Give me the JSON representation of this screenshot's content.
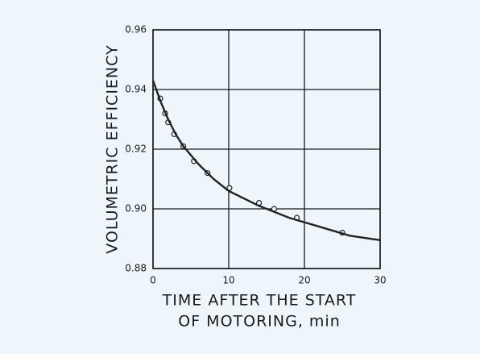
{
  "chart_data": {
    "type": "scatter",
    "ylabel": "VOLUMETRIC EFFICIENCY",
    "xlabel": [
      "TIME AFTER THE START",
      "OF MOTORING, min"
    ],
    "xlim": [
      0,
      30
    ],
    "xticks": [
      0,
      10,
      20,
      30
    ],
    "ylim": [
      0.88,
      0.96
    ],
    "yticks": [
      0.88,
      {
        "value": 0.9,
        "label": "0.90"
      },
      0.92,
      0.94,
      0.96
    ],
    "grid": true,
    "series": [
      {
        "kind": "scatter",
        "color": "#222222",
        "x": [
          0.96,
          1.6,
          2.0,
          2.8,
          4.0,
          5.4,
          7.2,
          10.1,
          14.0,
          16.0,
          19.0,
          25.0
        ],
        "values": [
          0.937,
          0.932,
          0.929,
          0.925,
          0.921,
          0.916,
          0.912,
          0.907,
          0.902,
          0.9,
          0.897,
          0.892
        ]
      },
      {
        "kind": "line",
        "color": "#222222",
        "x": [
          0,
          1,
          2,
          3,
          4,
          6,
          8,
          10,
          14,
          18,
          22,
          26,
          30
        ],
        "values": [
          0.943,
          0.936,
          0.93,
          0.925,
          0.921,
          0.915,
          0.91,
          0.906,
          0.901,
          0.897,
          0.894,
          0.891,
          0.8895
        ]
      }
    ]
  }
}
